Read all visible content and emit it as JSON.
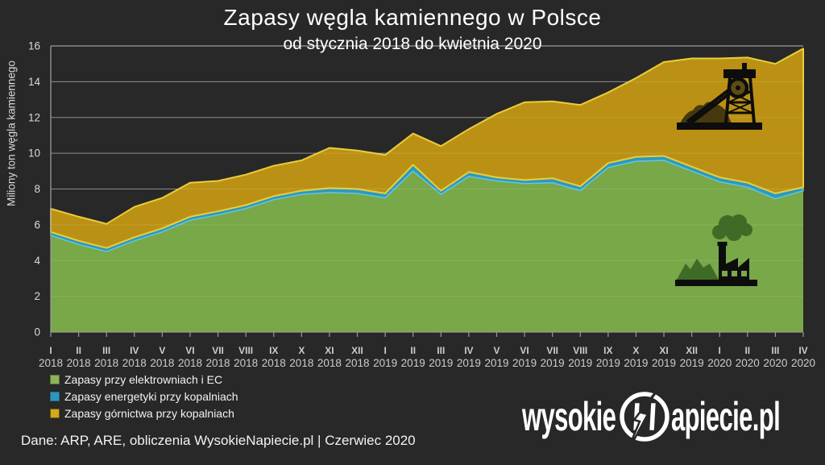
{
  "title": "Zapasy węgla kamiennego w Polsce",
  "subtitle": "od stycznia 2018 do kwietnia 2020",
  "y_axis_label": "Miliony ton węgla kamiennego",
  "footer": "Dane: ARP, ARE, obliczenia WysokieNapiecie.pl  |  Czerwiec  2020",
  "logo": {
    "left": "wysokie",
    "right": "apiecie.pl"
  },
  "colors": {
    "background": "#282828",
    "grid": "#7b7b7b",
    "axis": "#9a9a9a",
    "tick_text": "#cccccc",
    "area_green": "#78a847",
    "area_blue": "#2b9abf",
    "area_gold": "#bb9115",
    "stroke_blue": "#66c4de",
    "stroke_gold": "#e9ce3b",
    "legend_green": "#8cb45a",
    "legend_blue": "#2e96bd",
    "legend_gold": "#d6a81c",
    "legend_green_border": "#55742f",
    "legend_blue_border": "#1f6a87",
    "legend_gold_border": "#6b5510"
  },
  "chart_data": {
    "type": "area",
    "stacked": true,
    "grid": true,
    "legend_position": "bottom-left",
    "ylim": [
      0,
      16
    ],
    "yticks": [
      0,
      2,
      4,
      6,
      8,
      10,
      12,
      14,
      16
    ],
    "x_months": [
      "I",
      "II",
      "III",
      "IV",
      "V",
      "VI",
      "VII",
      "VIII",
      "IX",
      "X",
      "XI",
      "XII",
      "I",
      "II",
      "III",
      "IV",
      "V",
      "VI",
      "VII",
      "VIII",
      "IX",
      "X",
      "XI",
      "XII",
      "I",
      "II",
      "III",
      "IV"
    ],
    "x_years": [
      "2018",
      "2018",
      "2018",
      "2018",
      "2018",
      "2018",
      "2018",
      "2018",
      "2018",
      "2018",
      "2018",
      "2018",
      "2019",
      "2019",
      "2019",
      "2019",
      "2019",
      "2019",
      "2019",
      "2019",
      "2019",
      "2019",
      "2019",
      "2019",
      "2020",
      "2020",
      "2020",
      "2020"
    ],
    "series": [
      {
        "name": "Zapasy przy elektrowniach i EC",
        "color": "#78a847",
        "values": [
          5.4,
          4.9,
          4.5,
          5.1,
          5.6,
          6.25,
          6.55,
          6.9,
          7.4,
          7.7,
          7.8,
          7.75,
          7.5,
          9.0,
          7.7,
          8.7,
          8.45,
          8.3,
          8.35,
          7.9,
          9.2,
          9.55,
          9.6,
          9.0,
          8.4,
          8.1,
          7.45,
          7.9
        ]
      },
      {
        "name": "Zapasy energetyki przy kopalniach",
        "color": "#2b9abf",
        "values": [
          0.2,
          0.2,
          0.2,
          0.2,
          0.2,
          0.2,
          0.2,
          0.2,
          0.2,
          0.2,
          0.25,
          0.25,
          0.25,
          0.35,
          0.2,
          0.25,
          0.2,
          0.2,
          0.25,
          0.25,
          0.25,
          0.25,
          0.25,
          0.25,
          0.25,
          0.25,
          0.3,
          0.2
        ]
      },
      {
        "name": "Zapasy górnictwa przy kopalniach",
        "color": "#bb9115",
        "values": [
          1.3,
          1.35,
          1.35,
          1.7,
          1.7,
          1.9,
          1.7,
          1.7,
          1.7,
          1.7,
          2.25,
          2.15,
          2.15,
          1.75,
          2.5,
          2.4,
          3.55,
          4.35,
          4.3,
          4.55,
          3.95,
          4.4,
          5.25,
          6.05,
          6.65,
          7.0,
          7.25,
          7.75
        ]
      }
    ]
  }
}
